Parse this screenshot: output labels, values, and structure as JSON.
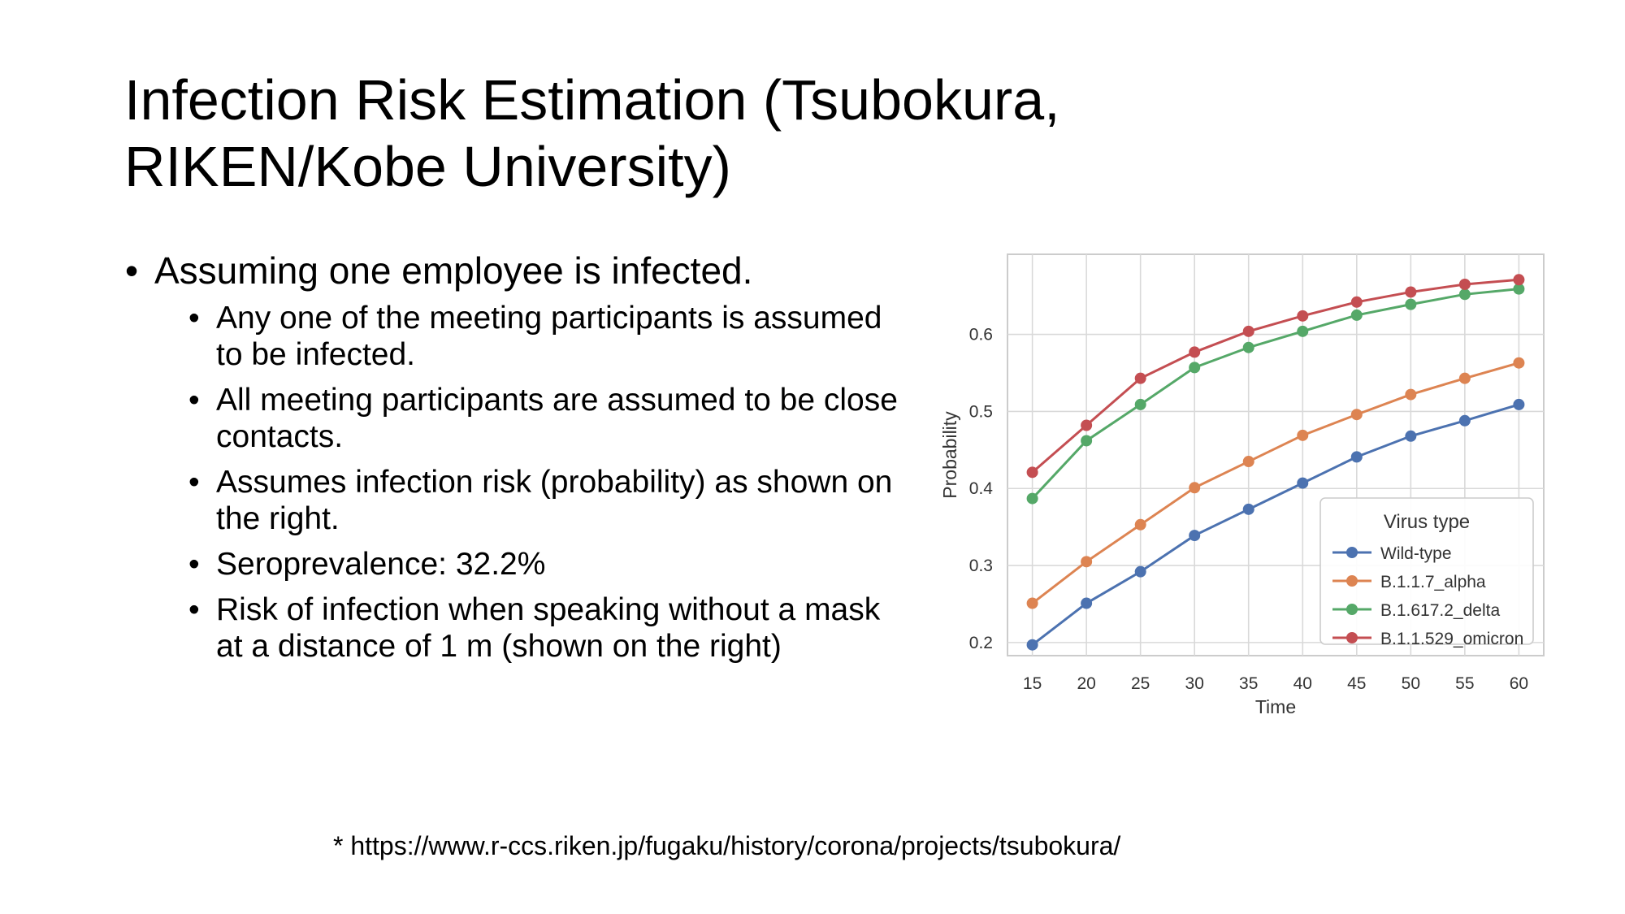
{
  "slide": {
    "title_line1": "Infection Risk Estimation (Tsubokura,",
    "title_line2": "RIKEN/Kobe University)",
    "bullet_main": "Assuming one employee is infected.",
    "sub_bullets": [
      "Any one of the meeting participants is assumed to be infected.",
      "All meeting participants are assumed to be close contacts.",
      "Assumes infection risk (probability) as shown on the right.",
      "Seroprevalence: 32.2%",
      "Risk of infection when speaking without a mask at a distance of 1 m (shown on the right)"
    ],
    "footnote": "* https://www.r-ccs.riken.jp/fugaku/history/corona/projects/tsubokura/"
  },
  "chart_data": {
    "type": "line",
    "xlabel": "Time",
    "ylabel": "Probability",
    "x": [
      15,
      20,
      25,
      30,
      35,
      40,
      45,
      50,
      55,
      60
    ],
    "xticks": [
      "15",
      "20",
      "25",
      "30",
      "35",
      "40",
      "45",
      "50",
      "55",
      "60"
    ],
    "yticks": [
      "0.2",
      "0.3",
      "0.4",
      "0.5",
      "0.6"
    ],
    "xlim": [
      12.7,
      62.3
    ],
    "ylim": [
      0.183,
      0.704
    ],
    "grid": true,
    "legend": {
      "title": "Virus type",
      "position": "lower-right"
    },
    "series": [
      {
        "name": "Wild-type",
        "color": "#4c72b0",
        "values": [
          0.197,
          0.251,
          0.292,
          0.339,
          0.373,
          0.407,
          0.441,
          0.468,
          0.488,
          0.509
        ]
      },
      {
        "name": "B.1.1.7_alpha",
        "color": "#dd8452",
        "values": [
          0.251,
          0.305,
          0.353,
          0.401,
          0.435,
          0.469,
          0.496,
          0.522,
          0.543,
          0.563
        ]
      },
      {
        "name": "B.1.617.2_delta",
        "color": "#55a868",
        "values": [
          0.387,
          0.462,
          0.509,
          0.557,
          0.583,
          0.604,
          0.625,
          0.639,
          0.652,
          0.659
        ]
      },
      {
        "name": "B.1.1.529_omicron",
        "color": "#c44e52",
        "values": [
          0.421,
          0.482,
          0.543,
          0.577,
          0.604,
          0.624,
          0.642,
          0.655,
          0.665,
          0.671
        ]
      }
    ]
  }
}
